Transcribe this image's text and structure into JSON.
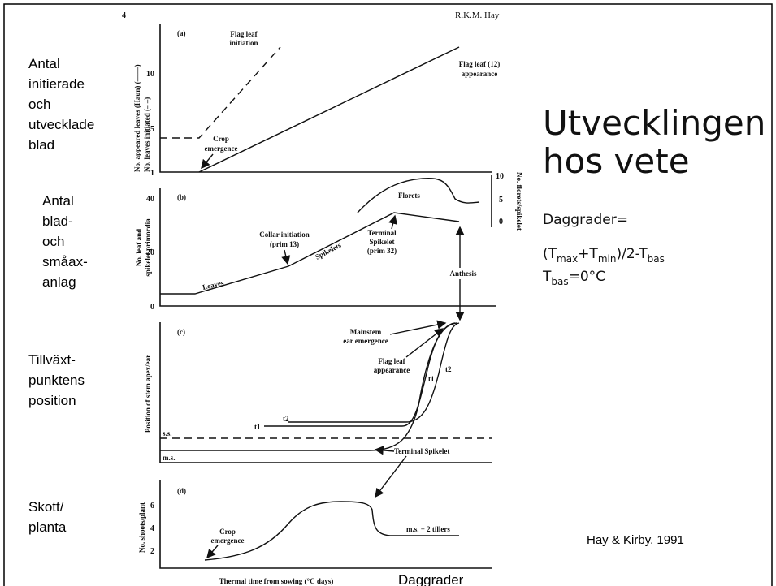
{
  "slide": {
    "title_lines": [
      "Utvecklingen",
      "hos vete"
    ],
    "formula": {
      "line1": "Daggrader=",
      "line2": [
        "(T",
        "max",
        "+T",
        "min",
        ")/2-T",
        "bas"
      ],
      "line3": [
        "T",
        "bas",
        "=0°C"
      ]
    },
    "citation": "Hay & Kirby, 1991",
    "x_caption": "Daggrader"
  },
  "side_labels": [
    [
      "Antal",
      "initierade",
      "och",
      "utvecklade",
      "blad"
    ],
    [
      "Antal",
      "blad-",
      "och",
      "småax-",
      "anlag"
    ],
    [
      "Tillväxt-",
      "punktens",
      "position"
    ],
    [
      "Skott/",
      "planta"
    ]
  ],
  "figure": {
    "page_number": "4",
    "author": "R.K.M. Hay",
    "x_axis_title": "Thermal time from sowing (°C days)",
    "panels": [
      {
        "label": "(a)",
        "y_labels": [
          "No. appeared leaves (Haun) (——)",
          "No. leaves initiated (– –)"
        ],
        "yticks": [
          1,
          5,
          10
        ],
        "annotations": [
          "Flag leaf",
          "initiation",
          "Flag leaf (12)",
          "appearance",
          "Crop",
          "emergence"
        ]
      },
      {
        "label": "(b)",
        "y_labels": [
          "No. leaf and",
          "spikelet primordia"
        ],
        "yticks": [
          0,
          20,
          40
        ],
        "y2_label": "No. florets/spikelet",
        "y2ticks": [
          0,
          5,
          10
        ],
        "annotations": [
          "Florets",
          "Collar initiation",
          "(prim 13)",
          "Spikelets",
          "Leaves",
          "Terminal",
          "Spikelet",
          "(prim 32)",
          "Anthesis"
        ]
      },
      {
        "label": "(c)",
        "y_labels": [
          "Position of stem apex/ear"
        ],
        "annotations": [
          "Mainstem",
          "ear emergence",
          "Flag leaf",
          "appearance",
          "t1",
          "t2",
          "t1",
          "t2",
          "s.s.",
          "m.s.",
          "Terminal Spikelet"
        ]
      },
      {
        "label": "(d)",
        "y_labels": [
          "No. shoots/plant"
        ],
        "yticks": [
          2,
          4,
          6
        ],
        "annotations": [
          "Crop",
          "emergence",
          "m.s. + 2 tillers"
        ]
      }
    ]
  }
}
